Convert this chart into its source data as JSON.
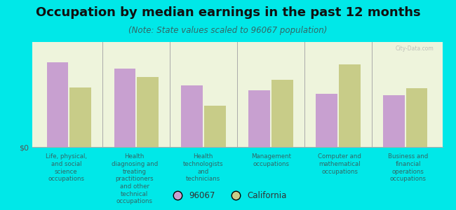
{
  "title": "Occupation by median earnings in the past 12 months",
  "subtitle": "(Note: State values scaled to 96067 population)",
  "categories": [
    "Life, physical,\nand social\nscience\noccupations",
    "Health\ndiagnosing and\ntreating\npractitioners\nand other\ntechnical\noccupations",
    "Health\ntechnologists\nand\ntechnicians",
    "Management\noccupations",
    "Computer and\nmathematical\noccupations",
    "Business and\nfinancial\noperations\noccupations"
  ],
  "values_96067": [
    0.82,
    0.76,
    0.6,
    0.55,
    0.52,
    0.5
  ],
  "values_california": [
    0.58,
    0.68,
    0.4,
    0.65,
    0.8,
    0.57
  ],
  "color_96067": "#c8a0d0",
  "color_california": "#c8cc88",
  "background_color": "#00e8e8",
  "plot_bg": "#eef4dc",
  "ylabel": "$0",
  "legend_label_96067": "96067",
  "legend_label_california": "California",
  "title_fontsize": 13,
  "subtitle_fontsize": 8.5,
  "watermark": "City-Data.com"
}
